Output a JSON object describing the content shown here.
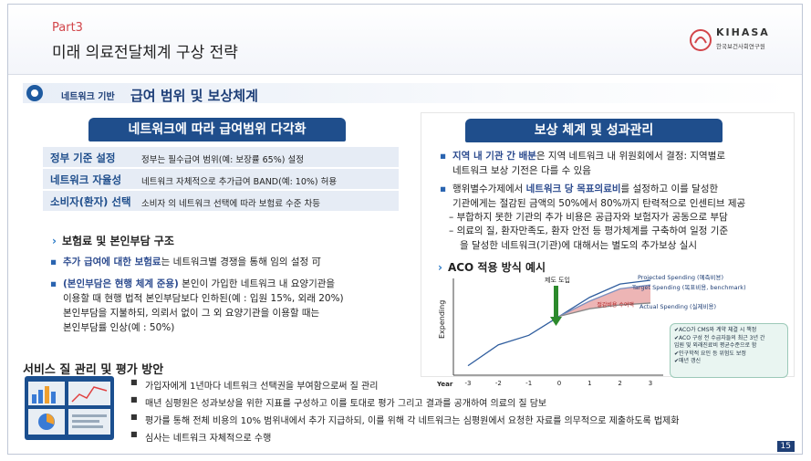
{
  "header": {
    "part": "Part3",
    "title": "미래 의료전달체계 구상 전략",
    "logo_en": "KIHASA",
    "logo_ko": "한국보건사회연구원"
  },
  "banner": {
    "small": "네트워크 기반",
    "big": "급여 범위 및 보상체계"
  },
  "left": {
    "title": "네트워크에 따라 급여범위 다각화",
    "rows": [
      {
        "key": "정부 기준 설정",
        "value": "정부는 필수급여 범위(예: 보장률 65%) 설정"
      },
      {
        "key": "네트워크 자율성",
        "value": "네트워크 자체적으로 추가급여 BAND(예: 10%) 허용"
      },
      {
        "key": "소비자(환자) 선택",
        "value": "소비자 의 네트워크 선택에 따라 보험료 수준 차등"
      }
    ],
    "subhead": "보험료 및 본인부담 구조",
    "b1_hl": "추가 급여에 대한 보험료",
    "b1_rest": "는 네트워크별 경쟁을 통해 임의 설정 可",
    "b2_hl": "(본인부담은 현행 체계 준용)",
    "b2_line1": " 본인이 가입한 네트워크 내 요양기관을",
    "b2_line2": "이용할 때 현행 법적 본인부담보다 인하된(예 : 입원 15%, 외래 20%)",
    "b2_line3": "본인부담을 지불하되, 의뢰서 없이 그 외 요양기관을 이용할 때는",
    "b2_line4": "본인부담률 인상(예 : 50%)"
  },
  "right": {
    "title": "보상 체계 및 성과관리",
    "b1_hl": "지역 내 기관 간 배분",
    "b1_rest": "은 지역 네트워크 내 위원회에서 결정: 지역별로",
    "b1_line2": "네트워크 보상 기전은 다를 수 있음",
    "b2_pre": "행위별수가제에서 ",
    "b2_hl": "네트워크 당 목표의료비",
    "b2_rest": "를 설정하고 이를 달성한",
    "b2_line2": "기관에게는 절감된 금액의 50%에서 80%까지 탄력적으로 인센티브 제공",
    "d1": "– 부합하지 못한 기관의 추가 비용은 공급자와 보험자가 공동으로 부담",
    "d2": "– 의료의 질, 환자만족도, 환자 안전 등 평가체계를 구축하여 일정 기준",
    "d2_line2": "을 달성한 네트워크(기관)에 대해서는 별도의 추가보상 실시",
    "aco_head": "ACO 적용 방식 예시"
  },
  "chart_data": {
    "type": "line",
    "x": [
      -3,
      -2,
      -1,
      0,
      1,
      2,
      3
    ],
    "xlabel": "Year",
    "ylabel": "Expending",
    "series": [
      {
        "name": "Projected Spending (예측비용)",
        "values": [
          0.1,
          0.32,
          0.42,
          0.62,
          0.82,
          0.96,
          1.0
        ]
      },
      {
        "name": "Target Spending (목표비용, benchmark)",
        "values": [
          0.1,
          0.32,
          0.42,
          0.62,
          0.78,
          0.91,
          0.95
        ]
      },
      {
        "name": "Actual Spending (실제비용)",
        "values": [
          0.1,
          0.32,
          0.42,
          0.62,
          0.7,
          0.74,
          0.76
        ]
      }
    ],
    "annotations": {
      "intro": "제도 도입",
      "savings": "절감비용 수여액"
    },
    "colors": {
      "projected": "#2f5d9e",
      "target": "#7a8fbf",
      "actual": "#888888",
      "savings": "#e8a3a3",
      "arrow": "#2c8a2c"
    }
  },
  "callout": [
    "✔ACO가 CMS와 계약 체결 시 책정",
    "✔ACO 구성 전 수급자들의 최근 3년 간",
    "  입원 및 외래진료비 평균수준으로 함",
    "✔인구학적 요인 등 위험도 보정",
    "✔매년 갱신"
  ],
  "bottom": {
    "title": "서비스 질 관리 및 평가 방안",
    "items": [
      "가입자에게 1년마다 네트워크 선택권을 부여함으로써 질 관리",
      "매년 심평원은 성과보상을 위한 지표를 구성하고 이를 토대로 평가 그리고 결과를 공개하여 의료의 질 담보",
      "평가를 통해 전체 비용의 10% 범위내에서 추가 지급하되, 이를 위해 각 네트워크는 심평원에서 요청한 자료를 의무적으로 제출하도록 법제화",
      "심사는 네트워크 자체적으로 수행"
    ],
    "page": "15"
  }
}
